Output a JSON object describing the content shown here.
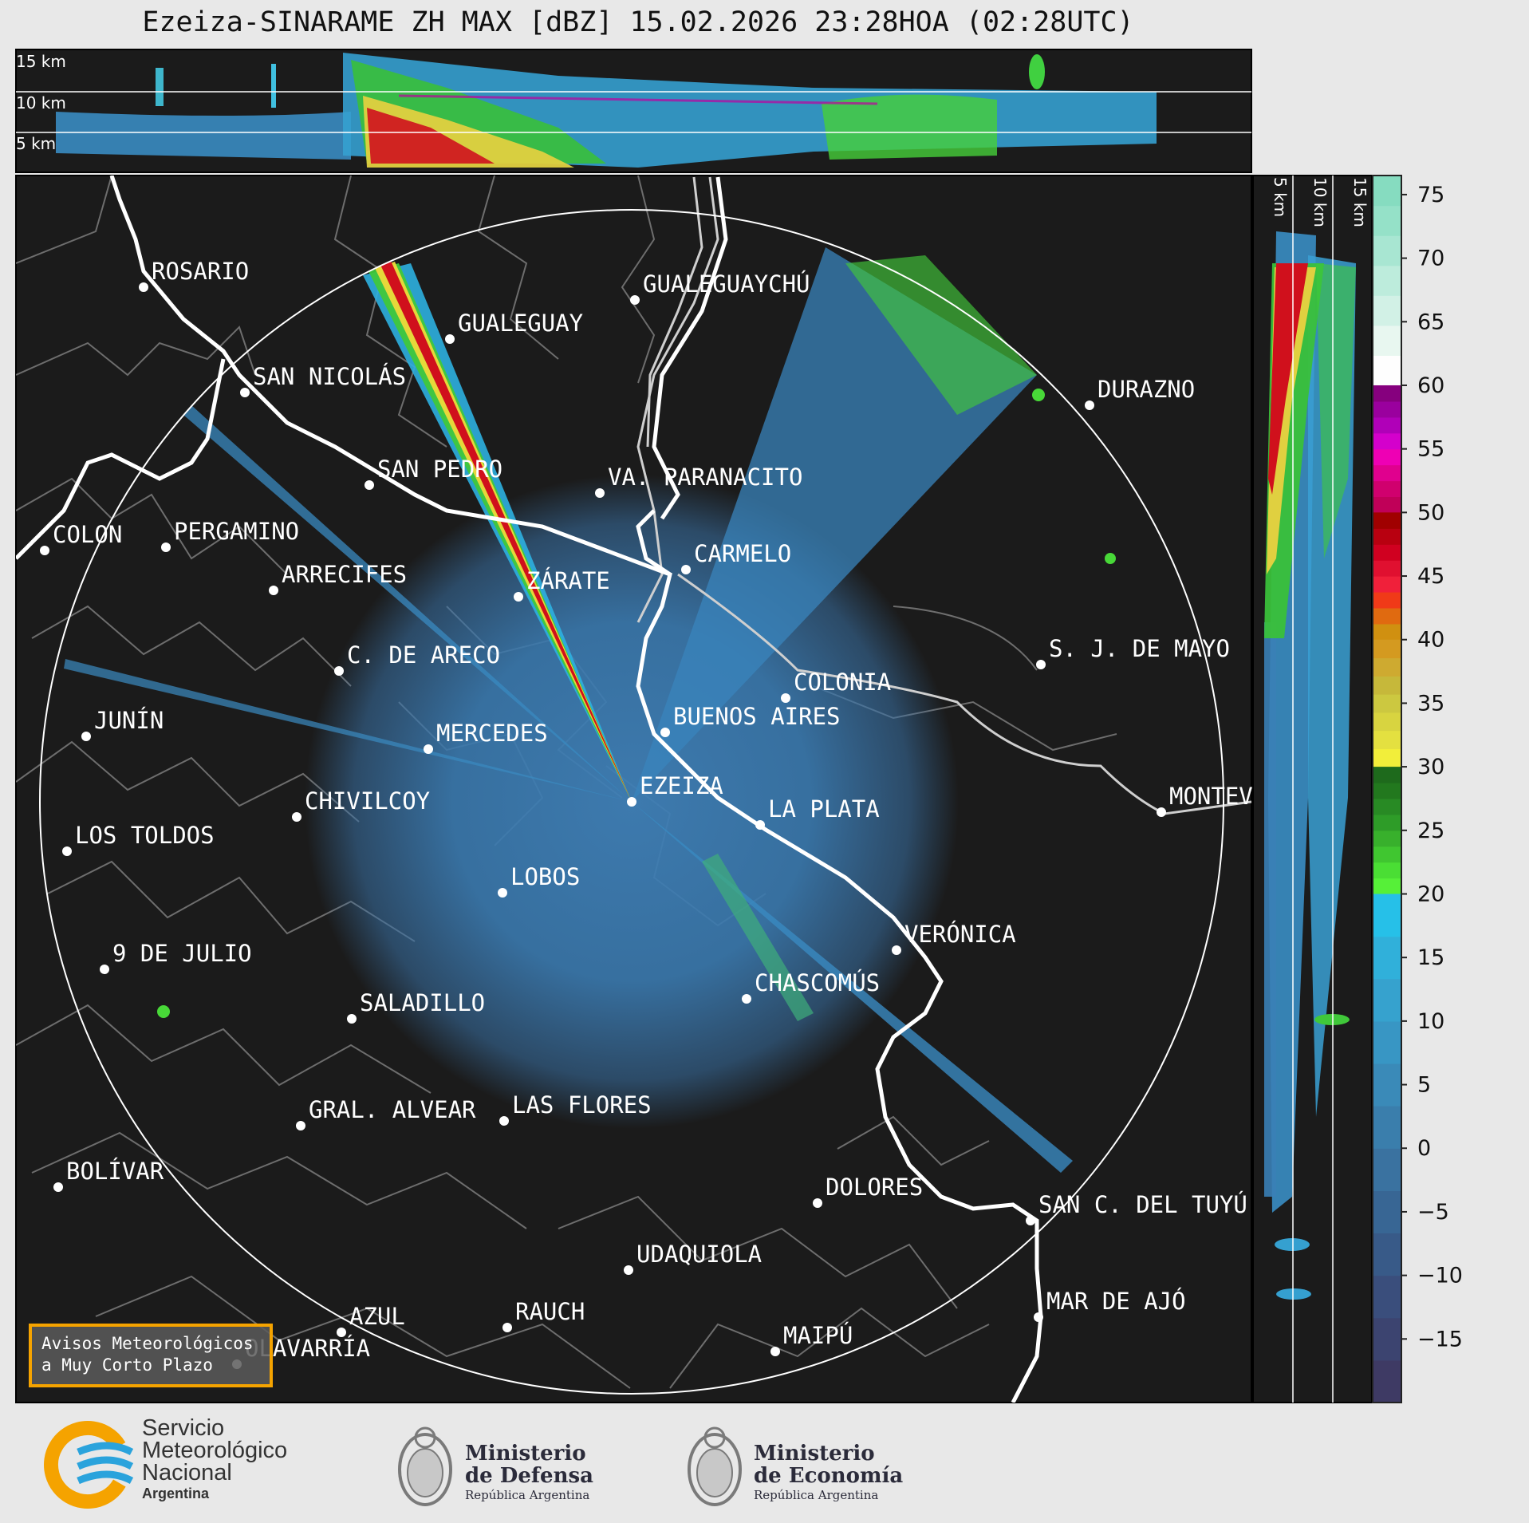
{
  "title": "Ezeiza-SINARAME ZH MAX [dBZ] 15.02.2026 23:28HOA (02:28UTC)",
  "top_profile": {
    "km_labels": [
      "15 km",
      "10 km",
      "5 km"
    ]
  },
  "side_profile": {
    "km_labels": [
      "5 km",
      "10 km",
      "15 km"
    ]
  },
  "colorbar": {
    "ticks": [
      "75",
      "70",
      "65",
      "60",
      "55",
      "50",
      "45",
      "40",
      "35",
      "30",
      "25",
      "20",
      "15",
      "10",
      "5",
      "0",
      "−5",
      "−10",
      "−15"
    ],
    "tick_values": [
      75,
      70,
      65,
      60,
      55,
      50,
      45,
      40,
      35,
      30,
      25,
      20,
      15,
      10,
      5,
      0,
      -5,
      -10,
      -15
    ],
    "range": [
      -20,
      76.5
    ],
    "segments": [
      {
        "from": 60,
        "to": 76.5,
        "colors": [
          "#fefefe",
          "#e8f7f0",
          "#d2f1e6",
          "#bdecdc",
          "#a8e6d2",
          "#95e1c8",
          "#86dcc0"
        ]
      },
      {
        "from": 50,
        "to": 60,
        "colors": [
          "#c00058",
          "#d0006e",
          "#e0008e",
          "#ee00b4",
          "#d400cc",
          "#b000b8",
          "#9a009e",
          "#86007e"
        ]
      },
      {
        "from": 40,
        "to": 50,
        "colors": [
          "#d09010",
          "#e06a10",
          "#f03a18",
          "#f0203a",
          "#e01030",
          "#d00020",
          "#b80010",
          "#a00000"
        ]
      },
      {
        "from": 30,
        "to": 40,
        "colors": [
          "#f2ee3a",
          "#e4e040",
          "#d8d440",
          "#ccc840",
          "#c6b83a",
          "#ceaa30",
          "#d49a20"
        ]
      },
      {
        "from": 20,
        "to": 30,
        "colors": [
          "#56f038",
          "#4ade34",
          "#40c630",
          "#38b02c",
          "#2e9c28",
          "#288a24",
          "#22781e",
          "#1e6a1c"
        ]
      },
      {
        "from": -20,
        "to": 20,
        "colors": [
          "#3e3a64",
          "#3c4470",
          "#3a4e7c",
          "#385a88",
          "#386694",
          "#3a72a0",
          "#3a7eac",
          "#3a8ab8",
          "#3896c4",
          "#36a2ce",
          "#30b0da",
          "#26c0e8"
        ]
      }
    ]
  },
  "cities": [
    {
      "name": "ROSARIO"
    },
    {
      "name": "GUALEGUAYCHÚ"
    },
    {
      "name": "GUALEGUAY"
    },
    {
      "name": "SAN NICOLÁS"
    },
    {
      "name": "DURAZNO"
    },
    {
      "name": "SAN PEDRO"
    },
    {
      "name": "VA. PARANACITO"
    },
    {
      "name": "COLON"
    },
    {
      "name": "PERGAMINO"
    },
    {
      "name": "CARMELO"
    },
    {
      "name": "ARRECIFES"
    },
    {
      "name": "ZÁRATE"
    },
    {
      "name": "S. J. DE MAYO"
    },
    {
      "name": "C. DE ARECO"
    },
    {
      "name": "COLONIA"
    },
    {
      "name": "JUNÍN"
    },
    {
      "name": "BUENOS AIRES"
    },
    {
      "name": "MERCEDES"
    },
    {
      "name": "EZEIZA"
    },
    {
      "name": "MONTEV"
    },
    {
      "name": "CHIVILCOY"
    },
    {
      "name": "LA PLATA"
    },
    {
      "name": "LOS TOLDOS"
    },
    {
      "name": "LOBOS"
    },
    {
      "name": "VERÓNICA"
    },
    {
      "name": "9 DE JULIO"
    },
    {
      "name": "CHASCOMÚS"
    },
    {
      "name": "SALADILLO"
    },
    {
      "name": "GRAL. ALVEAR"
    },
    {
      "name": "LAS FLORES"
    },
    {
      "name": "BOLÍVAR"
    },
    {
      "name": "DOLORES"
    },
    {
      "name": "SAN C. DEL TUYÚ"
    },
    {
      "name": "UDAQUIOLA"
    },
    {
      "name": "AZUL"
    },
    {
      "name": "RAUCH"
    },
    {
      "name": "MAR DE AJÓ"
    },
    {
      "name": "OLAVARRÍA"
    },
    {
      "name": "MAIPÚ"
    }
  ],
  "avisos": {
    "line1": "Avisos Meteorológicos",
    "line2": "a Muy Corto Plazo"
  },
  "logos": {
    "smn": {
      "line1": "Servicio",
      "line2": "Meteorológico",
      "line3": "Nacional",
      "line4": "Argentina",
      "colors": [
        "#f5a300",
        "#2aa3dc"
      ]
    },
    "defensa": {
      "line1": "Ministerio",
      "line2": "de Defensa",
      "line3": "República Argentina"
    },
    "economia": {
      "line1": "Ministerio",
      "line2": "de Economía",
      "line3": "República Argentina"
    }
  }
}
